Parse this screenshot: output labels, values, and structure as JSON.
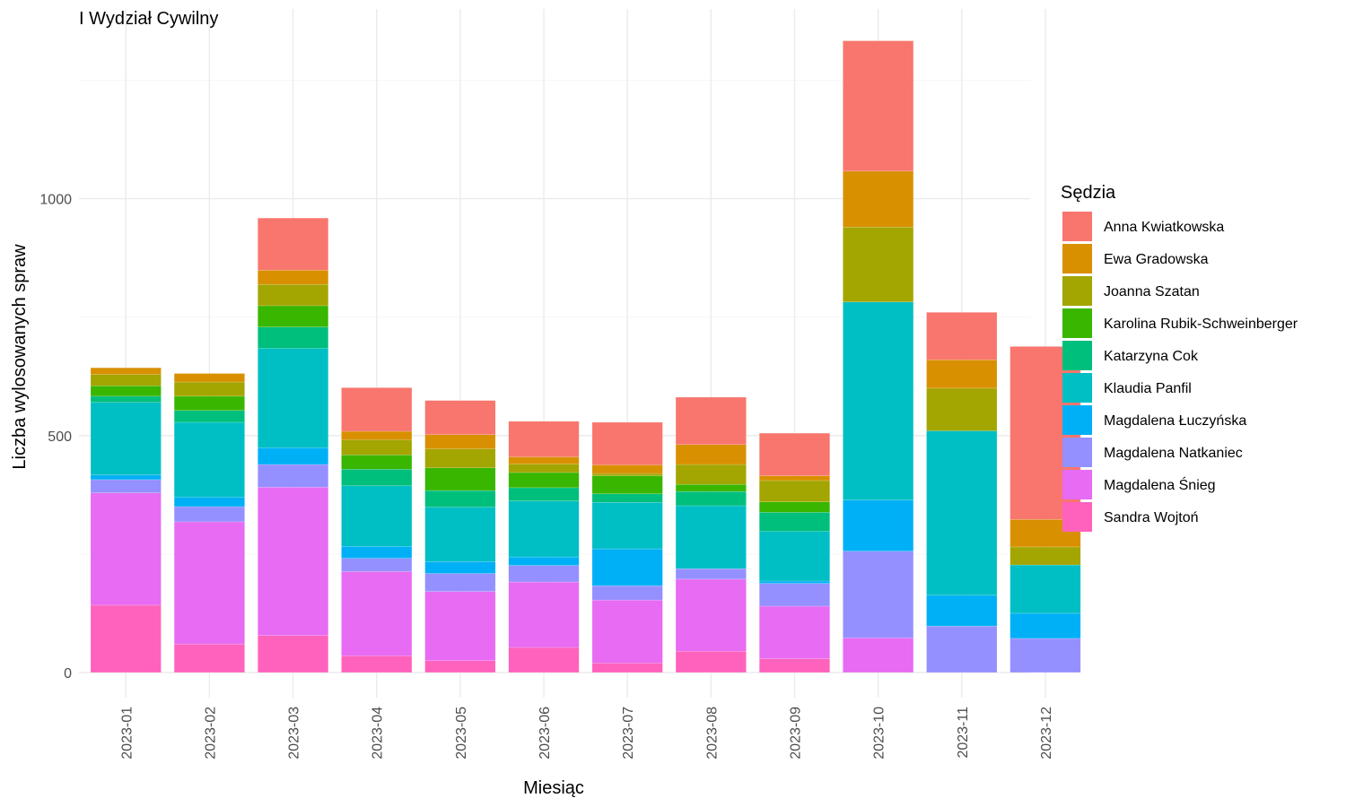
{
  "chart_data": {
    "type": "bar",
    "stacked": true,
    "title": "I Wydział Cywilny",
    "xlabel": "Miesiąc",
    "ylabel": "Liczba wylosowanych spraw",
    "ylim": [
      0,
      1400
    ],
    "yticks": [
      0,
      500,
      1000
    ],
    "yticks_labels": [
      "0",
      "500",
      "1000"
    ],
    "grid": true,
    "legend_title": "Sędzia",
    "legend_position": "right",
    "categories": [
      "2023-01",
      "2023-02",
      "2023-03",
      "2023-04",
      "2023-05",
      "2023-06",
      "2023-07",
      "2023-08",
      "2023-09",
      "2023-10",
      "2023-11",
      "2023-12"
    ],
    "series": [
      {
        "name": "Anna Kwiatkowska",
        "color": "#F8766D",
        "values": [
          0,
          0,
          110,
          92,
          72,
          75,
          90,
          100,
          90,
          275,
          100,
          365
        ]
      },
      {
        "name": "Ewa Gradowska",
        "color": "#D89000",
        "values": [
          14,
          18,
          30,
          18,
          30,
          15,
          18,
          42,
          10,
          118,
          60,
          58
        ]
      },
      {
        "name": "Joanna Szatan",
        "color": "#A3A500",
        "values": [
          24,
          30,
          45,
          32,
          40,
          18,
          5,
          42,
          45,
          158,
          90,
          38
        ]
      },
      {
        "name": "Karolina Rubik-Schweinberger",
        "color": "#39B600",
        "values": [
          22,
          30,
          45,
          30,
          48,
          32,
          38,
          15,
          22,
          0,
          0,
          0
        ]
      },
      {
        "name": "Katarzyna Cok",
        "color": "#00BF7D",
        "values": [
          13,
          25,
          45,
          35,
          35,
          28,
          18,
          30,
          40,
          0,
          0,
          0
        ]
      },
      {
        "name": "Klaudia Panfil",
        "color": "#00BFC4",
        "values": [
          153,
          158,
          210,
          128,
          115,
          118,
          98,
          133,
          105,
          418,
          347,
          102
        ]
      },
      {
        "name": "Magdalena Łuczyńska",
        "color": "#00B0F6",
        "values": [
          10,
          20,
          35,
          25,
          25,
          18,
          78,
          0,
          5,
          108,
          65,
          53
        ]
      },
      {
        "name": "Magdalena Natkaniec",
        "color": "#9590FF",
        "values": [
          28,
          32,
          48,
          28,
          38,
          35,
          30,
          22,
          48,
          183,
          98,
          72
        ]
      },
      {
        "name": "Magdalena Śnieg",
        "color": "#E76BF3",
        "values": [
          237,
          258,
          313,
          178,
          146,
          138,
          133,
          152,
          111,
          73,
          0,
          0
        ]
      },
      {
        "name": "Sandra Wojtoń",
        "color": "#FF62BC",
        "values": [
          142,
          60,
          78,
          35,
          25,
          53,
          20,
          45,
          29,
          0,
          0,
          0
        ]
      }
    ]
  }
}
